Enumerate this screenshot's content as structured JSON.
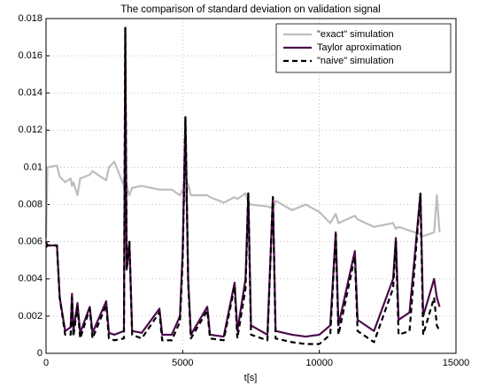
{
  "chart_data": {
    "type": "line",
    "title": "The comparison of standard deviation on validation signal",
    "x_label": "t[s]",
    "x": [
      0,
      50,
      400,
      500,
      700,
      900,
      950,
      1000,
      1150,
      1250,
      1600,
      1700,
      2200,
      2300,
      2500,
      2850,
      2900,
      2950,
      3050,
      3150,
      3500,
      4150,
      4250,
      4600,
      4900,
      5000,
      5100,
      5200,
      5300,
      5900,
      6000,
      6500,
      6900,
      7000,
      7300,
      7400,
      7500,
      8100,
      8300,
      8400,
      9000,
      9500,
      10000,
      10400,
      10600,
      10700,
      11300,
      11400,
      12000,
      12700,
      12800,
      12900,
      13300,
      13700,
      13800,
      14200,
      14300,
      14400
    ],
    "series": [
      {
        "name": "\"exact\" simulation",
        "color": "#bdbdbd",
        "linestyle": "solid",
        "values": [
          0.0062,
          0.01,
          0.0101,
          0.0095,
          0.0092,
          0.0094,
          0.009,
          0.0092,
          0.0085,
          0.0094,
          0.0096,
          0.0098,
          0.0093,
          0.01,
          0.0103,
          0.009,
          0.0093,
          0.009,
          0.0085,
          0.0089,
          0.009,
          0.0088,
          0.0088,
          0.0088,
          0.0085,
          0.0088,
          0.0082,
          0.0091,
          0.0085,
          0.0085,
          0.0084,
          0.0081,
          0.0084,
          0.0083,
          0.0086,
          0.0081,
          0.008,
          0.0079,
          0.0078,
          0.0082,
          0.0077,
          0.008,
          0.0076,
          0.007,
          0.0075,
          0.007,
          0.0074,
          0.0072,
          0.0068,
          0.007,
          0.0067,
          0.0068,
          0.0066,
          0.0064,
          0.0063,
          0.0065,
          0.0085,
          0.0065
        ]
      },
      {
        "name": "Taylor aproximation",
        "color": "#4b0a4b",
        "linestyle": "solid",
        "values": [
          0.006,
          0.0058,
          0.0058,
          0.003,
          0.0012,
          0.0014,
          0.0032,
          0.0012,
          0.0027,
          0.0011,
          0.0025,
          0.0011,
          0.0028,
          0.0011,
          0.001,
          0.0012,
          0.0175,
          0.0045,
          0.006,
          0.0012,
          0.0011,
          0.0024,
          0.001,
          0.001,
          0.002,
          0.0055,
          0.0127,
          0.004,
          0.001,
          0.0025,
          0.001,
          0.0009,
          0.0038,
          0.0012,
          0.004,
          0.0086,
          0.0015,
          0.001,
          0.0084,
          0.0012,
          0.001,
          0.0009,
          0.001,
          0.0015,
          0.0065,
          0.0015,
          0.0055,
          0.0018,
          0.0012,
          0.004,
          0.0062,
          0.0018,
          0.0022,
          0.0086,
          0.002,
          0.004,
          0.003,
          0.0025
        ]
      },
      {
        "name": "\"naive\" simulation",
        "color": "#000000",
        "linestyle": "dashed",
        "values": [
          0.0057,
          0.0058,
          0.0058,
          0.003,
          0.001,
          0.001,
          0.003,
          0.0009,
          0.0025,
          0.0008,
          0.0024,
          0.0008,
          0.0026,
          0.0008,
          0.0007,
          0.0008,
          0.0175,
          0.0045,
          0.006,
          0.001,
          0.0008,
          0.0022,
          0.0007,
          0.0007,
          0.0017,
          0.005,
          0.0127,
          0.0038,
          0.0008,
          0.0023,
          0.0008,
          0.0007,
          0.0036,
          0.0008,
          0.0035,
          0.0086,
          0.001,
          0.0007,
          0.0084,
          0.0008,
          0.0006,
          0.0005,
          0.0005,
          0.001,
          0.0064,
          0.001,
          0.0052,
          0.0012,
          0.0006,
          0.0035,
          0.006,
          0.001,
          0.0012,
          0.0086,
          0.001,
          0.003,
          0.0015,
          0.0012
        ]
      }
    ],
    "xlim": [
      0,
      15000
    ],
    "xticks": [
      0,
      5000,
      10000,
      15000
    ],
    "ylim": [
      0,
      0.018
    ],
    "yticks": [
      0,
      0.002,
      0.004,
      0.006,
      0.008,
      0.01,
      0.012,
      0.014,
      0.016,
      0.018
    ],
    "grid": true,
    "legend_position": "northeast"
  }
}
